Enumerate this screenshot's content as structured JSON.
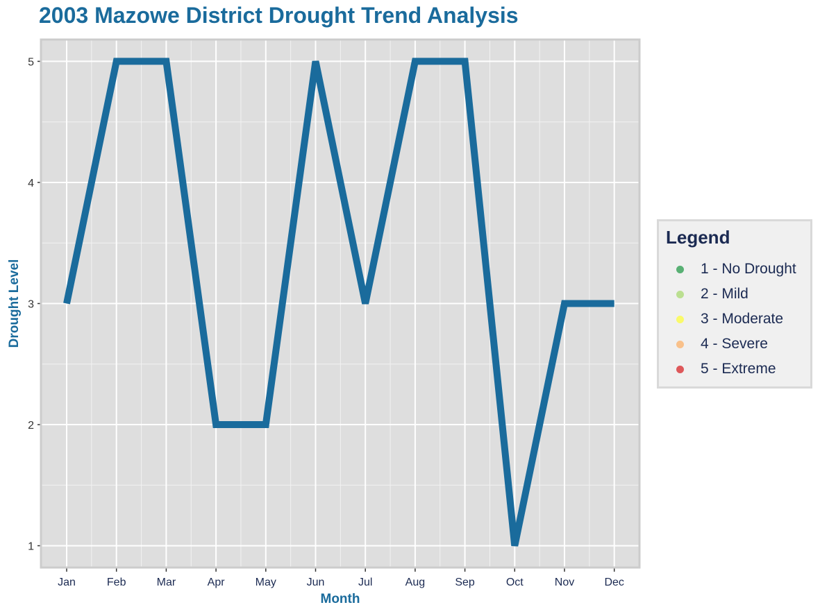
{
  "title": "2003 Mazowe District Drought Trend Analysis",
  "legend": {
    "title": "Legend",
    "items": [
      {
        "label": "1 - No Drought",
        "color": "#1a9641"
      },
      {
        "label": "2 - Mild",
        "color": "#a6d96a"
      },
      {
        "label": "3 - Moderate",
        "color": "#ffff33"
      },
      {
        "label": "4 - Severe",
        "color": "#fdae61"
      },
      {
        "label": "5 - Extreme",
        "color": "#d7191c"
      }
    ]
  },
  "chart_data": {
    "type": "line",
    "title": "2003 Mazowe District Drought Trend Analysis",
    "xlabel": "Month",
    "ylabel": "Drought Level",
    "categories": [
      "Jan",
      "Feb",
      "Mar",
      "Apr",
      "May",
      "Jun",
      "Jul",
      "Aug",
      "Sep",
      "Oct",
      "Nov",
      "Dec"
    ],
    "values": [
      3,
      5,
      5,
      2,
      2,
      5,
      3,
      5,
      5,
      1,
      3,
      3
    ],
    "yticks": [
      1,
      2,
      3,
      4,
      5
    ],
    "ylim": [
      0.82,
      5.18
    ],
    "line_color": "#1a6b9c",
    "panel_color": "#dedede",
    "grid": true,
    "legend_position": "right"
  }
}
